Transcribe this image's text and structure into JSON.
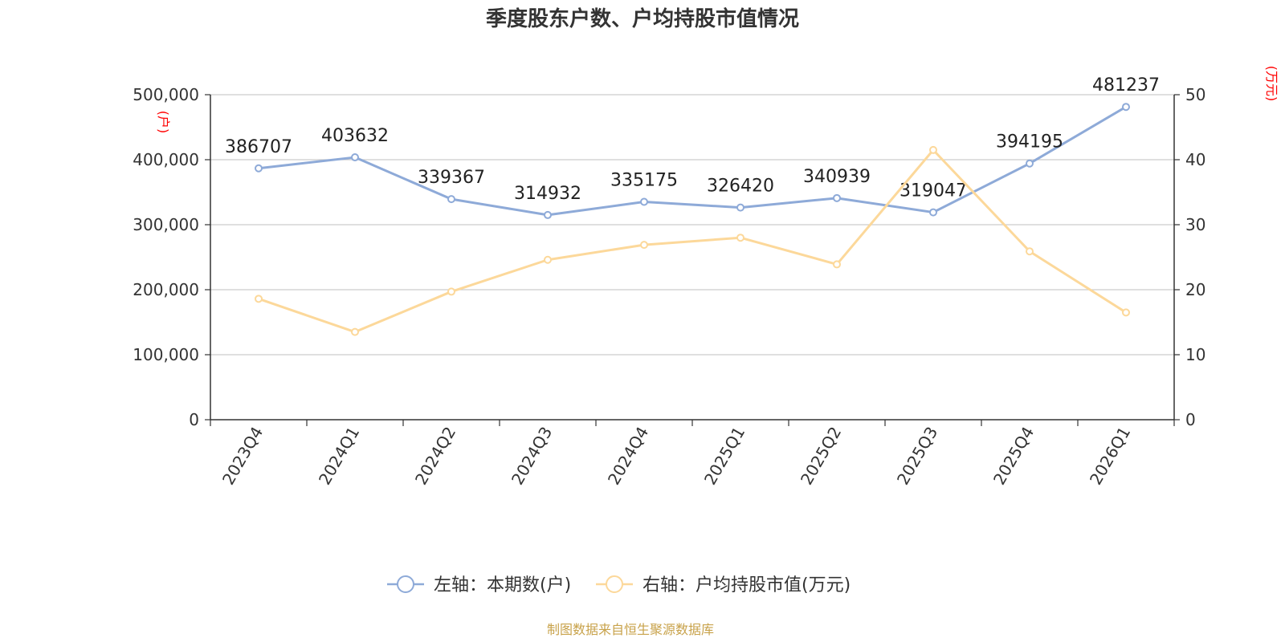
{
  "chart_data": {
    "type": "line",
    "title": "季度股东户数、户均持股市值情况",
    "categories": [
      "2023Q4",
      "2024Q1",
      "2024Q2",
      "2024Q3",
      "2024Q4",
      "2025Q1",
      "2025Q2",
      "2025Q3",
      "2025Q4",
      "2026Q1"
    ],
    "series": [
      {
        "name": "左轴：本期数(户)",
        "axis": "left",
        "color": "#8eaad8",
        "values": [
          386707,
          403632,
          339367,
          314932,
          335175,
          326420,
          340939,
          319047,
          394195,
          481237
        ],
        "labels": [
          "386707",
          "403632",
          "339367",
          "314932",
          "335175",
          "326420",
          "340939",
          "319047",
          "394195",
          "481237"
        ]
      },
      {
        "name": "右轴：户均持股市值(万元)",
        "axis": "right",
        "color": "#fcd89a",
        "values": [
          18.6,
          13.5,
          19.7,
          24.6,
          26.9,
          28.0,
          23.9,
          41.5,
          25.9,
          16.5
        ]
      }
    ],
    "y_left": {
      "unit": "(户)",
      "ylim": [
        0,
        500000
      ],
      "ticks": [
        "0",
        "100,000",
        "200,000",
        "300,000",
        "400,000",
        "500,000"
      ]
    },
    "y_right": {
      "unit": "(万元)",
      "ylim": [
        0,
        50
      ],
      "ticks": [
        "0",
        "10",
        "20",
        "30",
        "40",
        "50"
      ]
    },
    "grid": true,
    "legend_position": "bottom"
  },
  "source": "制图数据来自恒生聚源数据库"
}
